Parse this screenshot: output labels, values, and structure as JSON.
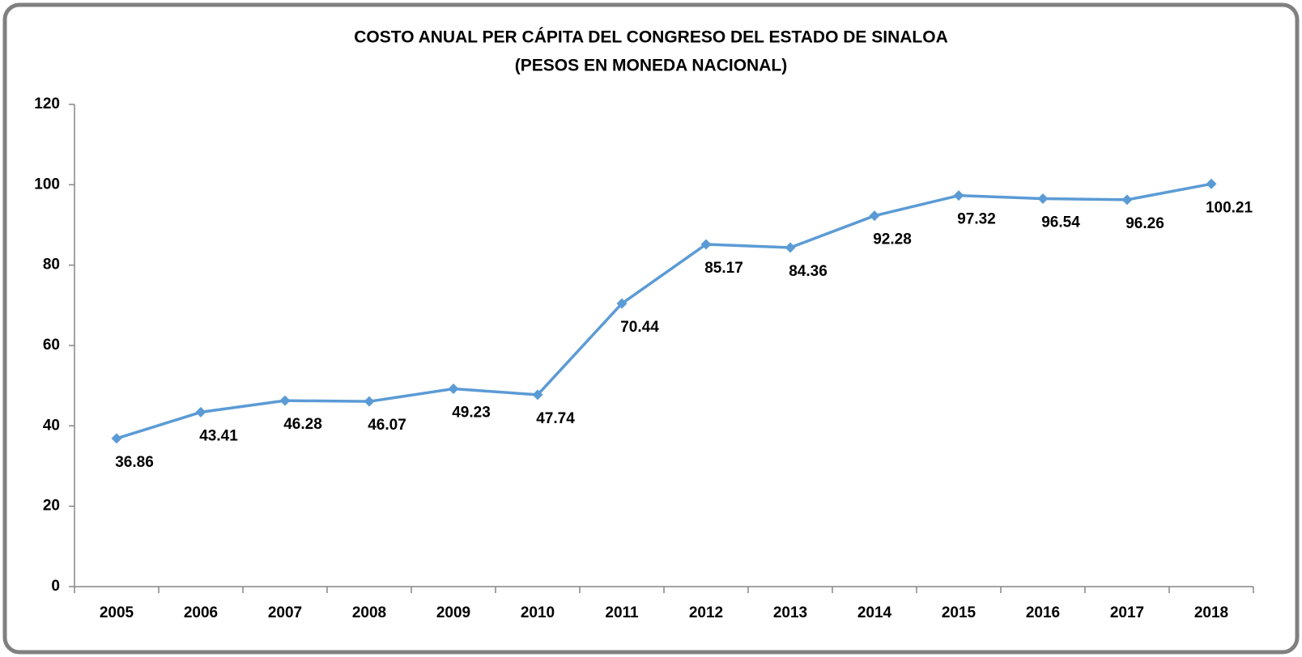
{
  "chart_data": {
    "type": "line",
    "title": "COSTO ANUAL PER CÁPITA DEL CONGRESO DEL ESTADO DE SINALOA",
    "subtitle": "(PESOS EN MONEDA NACIONAL)",
    "categories": [
      "2005",
      "2006",
      "2007",
      "2008",
      "2009",
      "2010",
      "2011",
      "2012",
      "2013",
      "2014",
      "2015",
      "2016",
      "2017",
      "2018"
    ],
    "values": [
      36.86,
      43.41,
      46.28,
      46.07,
      49.23,
      47.74,
      70.44,
      85.17,
      84.36,
      92.28,
      97.32,
      96.54,
      96.26,
      100.21
    ],
    "color": "#5b9bd5",
    "ylim": [
      0,
      120
    ],
    "yticks": [
      0,
      20,
      40,
      60,
      80,
      100,
      120
    ],
    "grid": false
  }
}
